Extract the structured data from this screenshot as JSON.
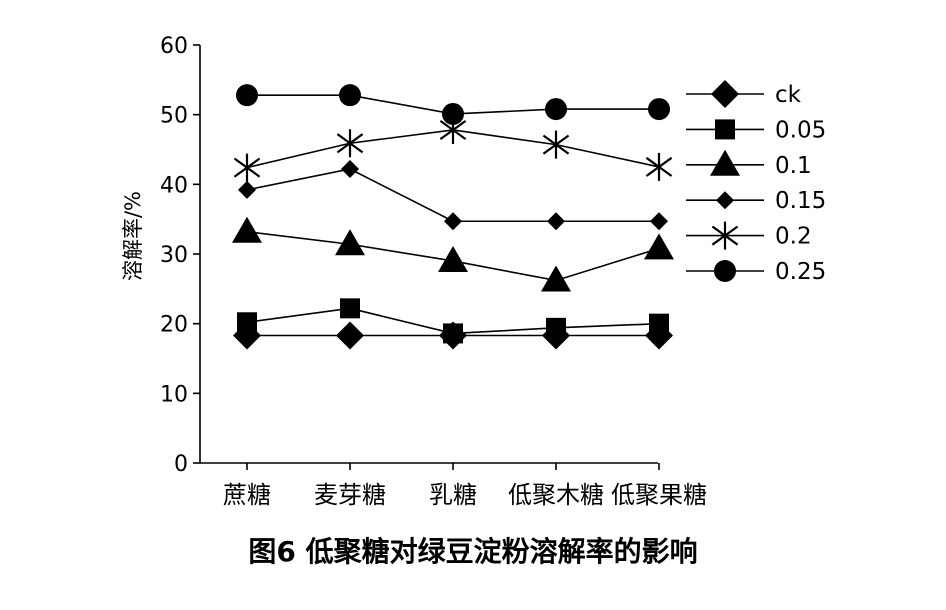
{
  "chart_data": {
    "type": "line",
    "categories": [
      "蔗糖",
      "麦芽糖",
      "乳糖",
      "低聚木糖",
      "低聚果糖"
    ],
    "ylabel": "溶解率/%",
    "xlabel": "",
    "ylim": [
      0,
      60
    ],
    "yticks": [
      0,
      10,
      20,
      30,
      40,
      50,
      60
    ],
    "legend_position": "right",
    "grid": false,
    "series": [
      {
        "name": "ck",
        "marker": "diamond-large",
        "values": [
          18.3,
          18.3,
          18.3,
          18.3,
          18.3
        ]
      },
      {
        "name": "0.05",
        "marker": "square",
        "values": [
          20.2,
          22.2,
          18.6,
          19.4,
          20.0
        ]
      },
      {
        "name": "0.1",
        "marker": "triangle",
        "values": [
          33.2,
          31.4,
          29.0,
          26.2,
          30.8
        ]
      },
      {
        "name": "0.15",
        "marker": "diamond-small",
        "values": [
          39.2,
          42.2,
          34.7,
          34.7,
          34.7
        ]
      },
      {
        "name": "0.2",
        "marker": "asterisk",
        "values": [
          42.4,
          45.9,
          47.8,
          45.7,
          42.5
        ]
      },
      {
        "name": "0.25",
        "marker": "circle",
        "values": [
          52.8,
          52.8,
          50.1,
          50.8,
          50.8
        ]
      }
    ]
  },
  "caption": "图6   低聚糖对绿豆淀粉溶解率的影响"
}
